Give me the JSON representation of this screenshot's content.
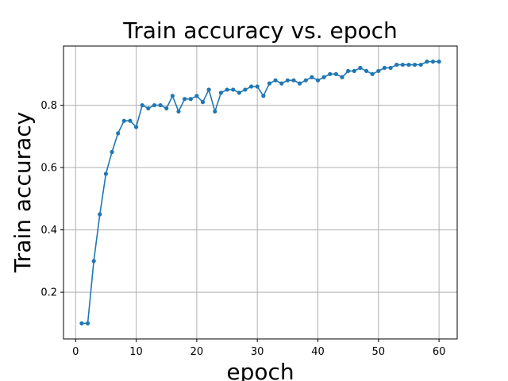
{
  "chart_data": {
    "type": "line",
    "title": "Train accuracy vs. epoch",
    "xlabel": "epoch",
    "ylabel": "Train accuracy",
    "xlim": [
      -2,
      63
    ],
    "ylim": [
      0.05,
      0.99
    ],
    "xticks": [
      0,
      10,
      20,
      30,
      40,
      50,
      60
    ],
    "yticks": [
      0.2,
      0.4,
      0.6,
      0.8
    ],
    "xtick_labels": [
      "0",
      "10",
      "20",
      "30",
      "40",
      "50",
      "60"
    ],
    "ytick_labels": [
      "0.2",
      "0.4",
      "0.6",
      "0.8"
    ],
    "grid": true,
    "marker": "circle",
    "colors": {
      "series": "#1f77b4",
      "grid": "#b0b0b0",
      "axes": "#000000"
    },
    "series": [
      {
        "x": [
          1,
          2,
          3,
          4,
          5,
          6,
          7,
          8,
          9,
          10,
          11,
          12,
          13,
          14,
          15,
          16,
          17,
          18,
          19,
          20,
          21,
          22,
          23,
          24,
          25,
          26,
          27,
          28,
          29,
          30,
          31,
          32,
          33,
          34,
          35,
          36,
          37,
          38,
          39,
          40,
          41,
          42,
          43,
          44,
          45,
          46,
          47,
          48,
          49,
          50,
          51,
          52,
          53,
          54,
          55,
          56,
          57,
          58,
          59,
          60
        ],
        "values": [
          0.1,
          0.1,
          0.3,
          0.45,
          0.58,
          0.65,
          0.71,
          0.75,
          0.75,
          0.73,
          0.8,
          0.79,
          0.8,
          0.8,
          0.79,
          0.83,
          0.78,
          0.82,
          0.82,
          0.83,
          0.81,
          0.85,
          0.78,
          0.84,
          0.85,
          0.85,
          0.84,
          0.85,
          0.86,
          0.86,
          0.83,
          0.87,
          0.88,
          0.87,
          0.88,
          0.88,
          0.87,
          0.88,
          0.89,
          0.88,
          0.89,
          0.9,
          0.9,
          0.89,
          0.91,
          0.91,
          0.92,
          0.91,
          0.9,
          0.91,
          0.92,
          0.92,
          0.93,
          0.93,
          0.93,
          0.93,
          0.93,
          0.94,
          0.94,
          0.94
        ]
      }
    ]
  }
}
